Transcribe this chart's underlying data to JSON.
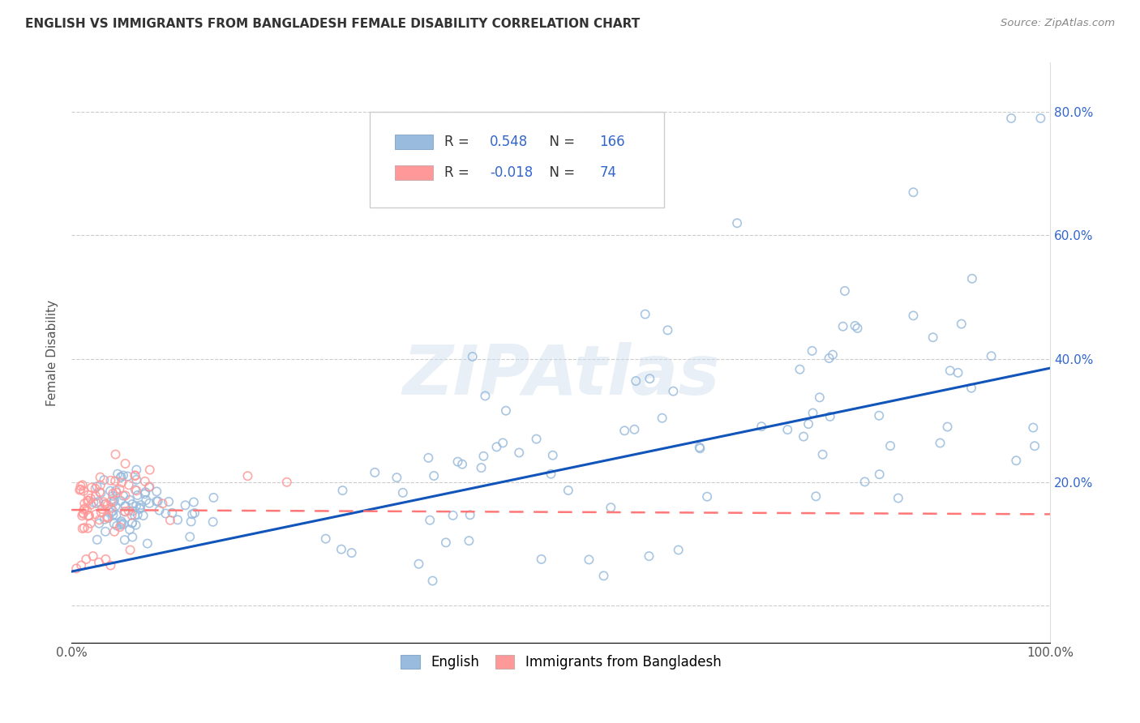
{
  "title": "ENGLISH VS IMMIGRANTS FROM BANGLADESH FEMALE DISABILITY CORRELATION CHART",
  "source": "Source: ZipAtlas.com",
  "ylabel": "Female Disability",
  "watermark": "ZIPAtlas",
  "legend1_label": "English",
  "legend2_label": "Immigrants from Bangladesh",
  "r1": 0.548,
  "n1": 166,
  "r2": -0.018,
  "n2": 74,
  "xlim": [
    0.0,
    1.0
  ],
  "ylim": [
    -0.06,
    0.88
  ],
  "color_english": "#99BBDD",
  "color_bangladesh": "#FF9999",
  "color_line_english": "#1155BB",
  "color_line_bangladesh": "#FF7777",
  "background_color": "#FFFFFF",
  "grid_color": "#CCCCCC",
  "eng_line_start": 0.055,
  "eng_line_end": 0.385,
  "bang_line_start": 0.155,
  "bang_line_end": 0.148
}
